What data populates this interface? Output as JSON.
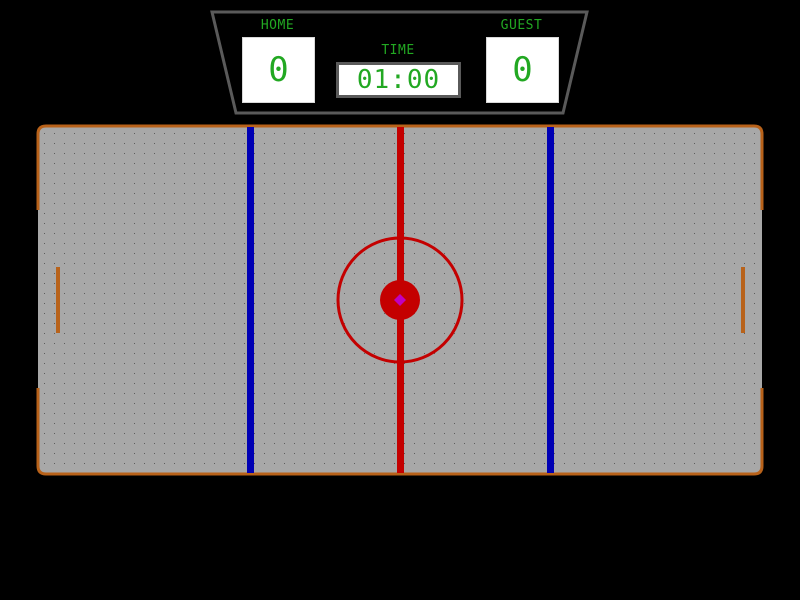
{
  "scoreboard": {
    "home_label": "HOME",
    "guest_label": "GUEST",
    "time_label": "TIME",
    "home_score": "0",
    "guest_score": "0",
    "time": "01:00"
  },
  "colors": {
    "scoreboard_text": "#22a822",
    "scoreboard_frame": "#5a5a5a",
    "rink_surface": "#a8a8a8",
    "rink_dots": "#5e5e5e",
    "rink_border": "#b8621a",
    "center_line": "#c40000",
    "blue_line": "#0000b4",
    "center_dot": "#c40000",
    "puck_marker": "#c000c0",
    "goal": "#b8621a"
  },
  "icons": {
    "center_face_off": "face-off-circle",
    "puck": "puck-dot"
  }
}
